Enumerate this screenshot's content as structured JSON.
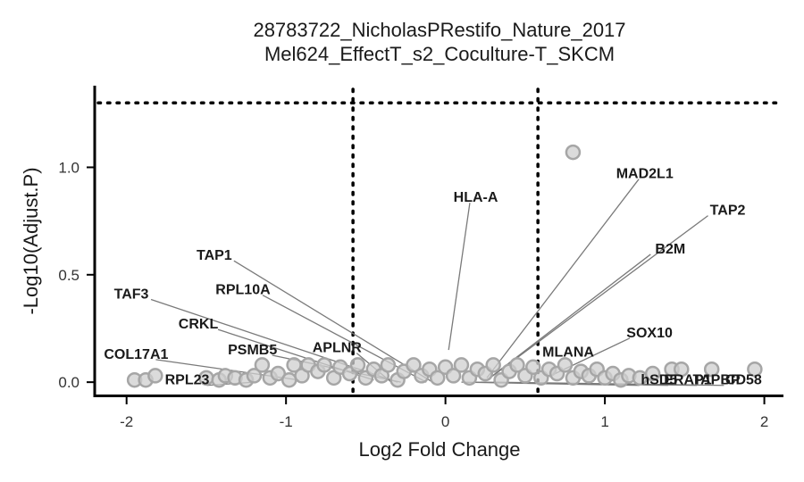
{
  "chart_data": {
    "type": "scatter",
    "title": [
      "28783722_NicholasPRestifo_Nature_2017",
      "Mel624_EffectT_s2_Coculture-T_SKCM"
    ],
    "xlabel": "Log2 Fold Change",
    "ylabel": "-Log10(Adjust.P)",
    "xlim": [
      -2.2,
      2.12
    ],
    "ylim": [
      -0.07,
      1.38
    ],
    "xticks": [
      {
        "value": -2,
        "label": "-2"
      },
      {
        "value": -1,
        "label": "-1"
      },
      {
        "value": 0,
        "label": "0"
      },
      {
        "value": 1,
        "label": "1"
      },
      {
        "value": 2,
        "label": "2"
      }
    ],
    "yticks": [
      {
        "value": 0,
        "label": "0.0"
      },
      {
        "value": 0.5,
        "label": "0.5"
      },
      {
        "value": 1,
        "label": "1.0"
      }
    ],
    "thresholds": {
      "x": [
        -0.58,
        0.58
      ],
      "y": 1.3
    },
    "grid": false,
    "legend": "none",
    "colors": {
      "point_fill": "#cfcfcf",
      "point_stroke": "#a6a6a6",
      "leader": "#7a7a7a",
      "threshold": "#000000"
    },
    "points": [
      {
        "x": 0.8,
        "y": 1.07
      },
      {
        "x": -1.95,
        "y": 0.01
      },
      {
        "x": -1.88,
        "y": 0.01
      },
      {
        "x": -1.82,
        "y": 0.03
      },
      {
        "x": -1.5,
        "y": 0.02
      },
      {
        "x": -1.42,
        "y": 0.01
      },
      {
        "x": -1.38,
        "y": 0.03
      },
      {
        "x": -1.32,
        "y": 0.02
      },
      {
        "x": -1.25,
        "y": 0.01
      },
      {
        "x": -1.2,
        "y": 0.03
      },
      {
        "x": -1.15,
        "y": 0.08
      },
      {
        "x": -1.1,
        "y": 0.02
      },
      {
        "x": -1.05,
        "y": 0.04
      },
      {
        "x": -0.98,
        "y": 0.01
      },
      {
        "x": -0.95,
        "y": 0.08
      },
      {
        "x": -0.9,
        "y": 0.03
      },
      {
        "x": -0.86,
        "y": 0.08
      },
      {
        "x": -0.8,
        "y": 0.05
      },
      {
        "x": -0.76,
        "y": 0.08
      },
      {
        "x": -0.7,
        "y": 0.02
      },
      {
        "x": -0.66,
        "y": 0.07
      },
      {
        "x": -0.6,
        "y": 0.04
      },
      {
        "x": -0.55,
        "y": 0.08
      },
      {
        "x": -0.5,
        "y": 0.02
      },
      {
        "x": -0.45,
        "y": 0.06
      },
      {
        "x": -0.4,
        "y": 0.03
      },
      {
        "x": -0.36,
        "y": 0.08
      },
      {
        "x": -0.3,
        "y": 0.01
      },
      {
        "x": -0.26,
        "y": 0.05
      },
      {
        "x": -0.2,
        "y": 0.08
      },
      {
        "x": -0.15,
        "y": 0.03
      },
      {
        "x": -0.1,
        "y": 0.06
      },
      {
        "x": -0.05,
        "y": 0.02
      },
      {
        "x": 0.0,
        "y": 0.07
      },
      {
        "x": 0.05,
        "y": 0.03
      },
      {
        "x": 0.1,
        "y": 0.08
      },
      {
        "x": 0.15,
        "y": 0.02
      },
      {
        "x": 0.2,
        "y": 0.06
      },
      {
        "x": 0.25,
        "y": 0.04
      },
      {
        "x": 0.3,
        "y": 0.08
      },
      {
        "x": 0.35,
        "y": 0.01
      },
      {
        "x": 0.4,
        "y": 0.05
      },
      {
        "x": 0.45,
        "y": 0.08
      },
      {
        "x": 0.5,
        "y": 0.03
      },
      {
        "x": 0.55,
        "y": 0.07
      },
      {
        "x": 0.6,
        "y": 0.02
      },
      {
        "x": 0.65,
        "y": 0.06
      },
      {
        "x": 0.7,
        "y": 0.04
      },
      {
        "x": 0.75,
        "y": 0.08
      },
      {
        "x": 0.8,
        "y": 0.02
      },
      {
        "x": 0.85,
        "y": 0.05
      },
      {
        "x": 0.9,
        "y": 0.03
      },
      {
        "x": 0.95,
        "y": 0.06
      },
      {
        "x": 1.0,
        "y": 0.02
      },
      {
        "x": 1.05,
        "y": 0.04
      },
      {
        "x": 1.1,
        "y": 0.01
      },
      {
        "x": 1.15,
        "y": 0.03
      },
      {
        "x": 1.22,
        "y": 0.02
      },
      {
        "x": 1.3,
        "y": 0.04
      },
      {
        "x": 1.42,
        "y": 0.06
      },
      {
        "x": 1.48,
        "y": 0.06
      },
      {
        "x": 1.67,
        "y": 0.06
      },
      {
        "x": 1.94,
        "y": 0.06
      }
    ],
    "labels": [
      {
        "text": "HLA-A",
        "label_x": 0.19,
        "label_y": 0.86,
        "anchor": "middle",
        "target_x": 0.02,
        "target_y": 0.15
      },
      {
        "text": "MAD2L1",
        "label_x": 1.25,
        "label_y": 0.97,
        "anchor": "middle",
        "target_x": 0.26,
        "target_y": 0.02
      },
      {
        "text": "TAP2",
        "label_x": 1.77,
        "label_y": 0.8,
        "anchor": "middle",
        "target_x": 0.28,
        "target_y": 0.02
      },
      {
        "text": "B2M",
        "label_x": 1.41,
        "label_y": 0.62,
        "anchor": "middle",
        "target_x": 0.26,
        "target_y": 0.01
      },
      {
        "text": "SOX10",
        "label_x": 1.28,
        "label_y": 0.23,
        "anchor": "middle",
        "target_x": 0.66,
        "target_y": 0.03
      },
      {
        "text": "MLANA",
        "label_x": 0.77,
        "label_y": 0.14,
        "anchor": "middle",
        "target_x": 0.62,
        "target_y": 0.02
      },
      {
        "text": "TAP1",
        "label_x": -1.45,
        "label_y": 0.59,
        "anchor": "middle",
        "target_x": -0.08,
        "target_y": 0.0
      },
      {
        "text": "RPL10A",
        "label_x": -1.27,
        "label_y": 0.43,
        "anchor": "middle",
        "target_x": -0.12,
        "target_y": 0.0
      },
      {
        "text": "TAF3",
        "label_x": -1.97,
        "label_y": 0.41,
        "anchor": "middle",
        "target_x": -0.3,
        "target_y": 0.0
      },
      {
        "text": "CRKL",
        "label_x": -1.55,
        "label_y": 0.27,
        "anchor": "middle",
        "target_x": -0.45,
        "target_y": 0.01
      },
      {
        "text": "PSMB5",
        "label_x": -1.21,
        "label_y": 0.15,
        "anchor": "middle",
        "target_x": -0.28,
        "target_y": 0.0
      },
      {
        "text": "APLNR",
        "label_x": -0.68,
        "label_y": 0.16,
        "anchor": "middle",
        "target_x": -0.34,
        "target_y": 0.0
      },
      {
        "text": "COL17A1",
        "label_x": -1.94,
        "label_y": 0.13,
        "anchor": "middle",
        "target_x": -0.92,
        "target_y": 0.01
      },
      {
        "text": "RPL23",
        "label_x": -1.62,
        "label_y": 0.01,
        "anchor": "middle",
        "target_x": -1.2,
        "target_y": 0.0
      },
      {
        "text": "hSD5",
        "label_x": 1.34,
        "label_y": 0.01,
        "anchor": "middle",
        "target_x": 0.1,
        "target_y": 0.0
      },
      {
        "text": "ERAP1",
        "label_x": 1.52,
        "label_y": 0.01,
        "anchor": "middle",
        "target_x": 0.18,
        "target_y": 0.0
      },
      {
        "text": "TAPBP",
        "label_x": 1.7,
        "label_y": 0.01,
        "anchor": "middle",
        "target_x": 0.22,
        "target_y": 0.0
      },
      {
        "text": "CD58",
        "label_x": 1.87,
        "label_y": 0.01,
        "anchor": "middle",
        "target_x": 0.3,
        "target_y": 0.0
      }
    ]
  }
}
